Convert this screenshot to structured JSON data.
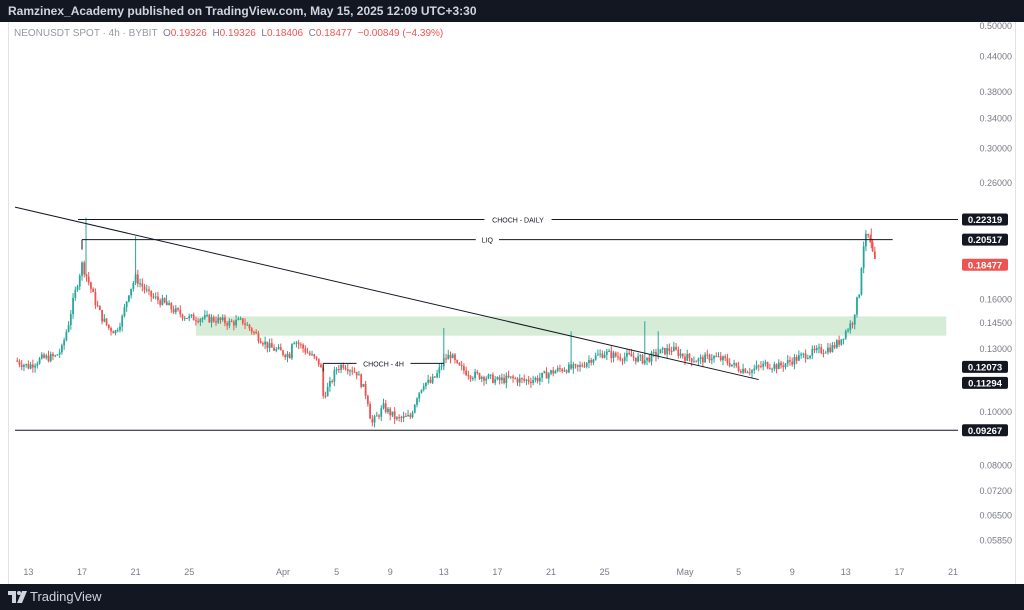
{
  "header": {
    "publisher": "Ramzinex_Academy published on TradingView.com, May 15, 2025 12:09 UTC+3:30"
  },
  "legend": {
    "symbol": "NEONUSDT SPOT · 4h · BYBIT",
    "open_label": "O",
    "open": "0.19326",
    "high_label": "H",
    "high": "0.19326",
    "low_label": "L",
    "low": "0.18406",
    "close_label": "C",
    "close": "0.18477",
    "change": "−0.00849 (−4.39%)"
  },
  "footer": {
    "brand": "TradingView"
  },
  "colors": {
    "up": "#26a69a",
    "down": "#ef5350",
    "zone": "#c8e6c9",
    "line": "#131722",
    "label_bg": "#131722",
    "price_tag": "#ef5350"
  },
  "chart_data": {
    "type": "candlestick",
    "y_scale": "log",
    "ylim": [
      0.0565,
      0.5
    ],
    "y_ticks": [
      "0.50000",
      "0.44000",
      "0.38000",
      "0.34000",
      "0.30000",
      "0.26000",
      "0.16000",
      "0.14500",
      "0.13000",
      "0.10000",
      "0.08000",
      "0.07200",
      "0.06500",
      "0.05850"
    ],
    "y_tick_values": [
      0.5,
      0.44,
      0.38,
      0.34,
      0.3,
      0.26,
      0.16,
      0.145,
      0.13,
      0.1,
      0.08,
      0.072,
      0.065,
      0.0585
    ],
    "x_ticks": [
      "13",
      "17",
      "21",
      "25",
      "Apr",
      "5",
      "9",
      "13",
      "17",
      "21",
      "25",
      "May",
      "5",
      "9",
      "13",
      "17",
      "21"
    ],
    "x_tick_days": [
      -19,
      -15,
      -11,
      -7,
      0,
      4,
      8,
      12,
      16,
      20,
      24,
      30,
      34,
      38,
      42,
      46,
      50
    ],
    "price_tags": [
      {
        "value": "0.22319",
        "level": 0.22319,
        "style": "dark"
      },
      {
        "value": "0.20517",
        "level": 0.20517,
        "style": "dark"
      },
      {
        "value": "0.18477",
        "level": 0.18477,
        "style": "current"
      },
      {
        "value": "0.12073",
        "level": 0.12073,
        "style": "dark"
      },
      {
        "value": "0.11294",
        "level": 0.11294,
        "style": "dark"
      },
      {
        "value": "0.09267",
        "level": 0.09267,
        "style": "dark"
      }
    ],
    "horizontal_lines": [
      {
        "name": "choch-daily",
        "label": "CHOCH - DAILY",
        "level": 0.22319,
        "from_day": -15.3,
        "to_day": 51
      },
      {
        "name": "liq",
        "label": "LIQ",
        "level": 0.20517,
        "from_day": -15,
        "to_day": 45.5
      },
      {
        "name": "choch-4h",
        "label": "CHOCH - 4H",
        "level": 0.1225,
        "from_day": 3,
        "to_day": 12
      },
      {
        "name": "support",
        "label": "",
        "level": 0.09267,
        "from_day": -20,
        "to_day": 51
      }
    ],
    "zone": {
      "low": 0.1375,
      "high": 0.149,
      "from_day": -6.5,
      "to_day": 49.5
    },
    "trendline": {
      "from_day": -20,
      "from_value": 0.235,
      "to_day": 35.5,
      "to_value": 0.1145
    },
    "anchors": [
      [
        -20,
        0.124
      ],
      [
        -19,
        0.121
      ],
      [
        -18,
        0.125
      ],
      [
        -17,
        0.126
      ],
      [
        -16.5,
        0.13
      ],
      [
        -16,
        0.145
      ],
      [
        -15.5,
        0.165
      ],
      [
        -15,
        0.185
      ],
      [
        -14.5,
        0.172
      ],
      [
        -14,
        0.158
      ],
      [
        -13.5,
        0.148
      ],
      [
        -13,
        0.142
      ],
      [
        -12.5,
        0.14
      ],
      [
        -12,
        0.148
      ],
      [
        -11.5,
        0.165
      ],
      [
        -11,
        0.175
      ],
      [
        -10,
        0.163
      ],
      [
        -9,
        0.158
      ],
      [
        -8,
        0.152
      ],
      [
        -7,
        0.148
      ],
      [
        -6,
        0.148
      ],
      [
        -5,
        0.147
      ],
      [
        -4,
        0.145
      ],
      [
        -3,
        0.146
      ],
      [
        -2,
        0.138
      ],
      [
        -1,
        0.131
      ],
      [
        0,
        0.128
      ],
      [
        0.5,
        0.127
      ],
      [
        0.7,
        0.136
      ],
      [
        1,
        0.134
      ],
      [
        2,
        0.127
      ],
      [
        2.8,
        0.122
      ],
      [
        3,
        0.107
      ],
      [
        3.5,
        0.112
      ],
      [
        4,
        0.12
      ],
      [
        4.5,
        0.122
      ],
      [
        5.5,
        0.118
      ],
      [
        6.3,
        0.106
      ],
      [
        6.6,
        0.095
      ],
      [
        7,
        0.098
      ],
      [
        7.5,
        0.102
      ],
      [
        8.5,
        0.097
      ],
      [
        9.5,
        0.098
      ],
      [
        10,
        0.107
      ],
      [
        10.5,
        0.113
      ],
      [
        11,
        0.113
      ],
      [
        11.5,
        0.117
      ],
      [
        12,
        0.124
      ],
      [
        12.5,
        0.127
      ],
      [
        13,
        0.121
      ],
      [
        14,
        0.117
      ],
      [
        15,
        0.116
      ],
      [
        16,
        0.114
      ],
      [
        17,
        0.115
      ],
      [
        18,
        0.114
      ],
      [
        19,
        0.115
      ],
      [
        20,
        0.118
      ],
      [
        21,
        0.12
      ],
      [
        22,
        0.12
      ],
      [
        23,
        0.125
      ],
      [
        24,
        0.128
      ],
      [
        25,
        0.126
      ],
      [
        26,
        0.126
      ],
      [
        27,
        0.124
      ],
      [
        28,
        0.128
      ],
      [
        29,
        0.13
      ],
      [
        30,
        0.126
      ],
      [
        31,
        0.124
      ],
      [
        32,
        0.126
      ],
      [
        33,
        0.124
      ],
      [
        34,
        0.12
      ],
      [
        35,
        0.119
      ],
      [
        36,
        0.122
      ],
      [
        37,
        0.121
      ],
      [
        38,
        0.124
      ],
      [
        39,
        0.127
      ],
      [
        40,
        0.129
      ],
      [
        41,
        0.131
      ],
      [
        41.5,
        0.134
      ],
      [
        42,
        0.14
      ],
      [
        42.5,
        0.146
      ],
      [
        43,
        0.165
      ],
      [
        43.3,
        0.2
      ],
      [
        43.6,
        0.21
      ],
      [
        43.9,
        0.198
      ],
      [
        44.2,
        0.18477
      ]
    ],
    "spikes": [
      [
        -14.7,
        0.225
      ],
      [
        -11,
        0.208
      ],
      [
        -8.7,
        0.163
      ],
      [
        12,
        0.142
      ],
      [
        21.5,
        0.14
      ],
      [
        27,
        0.146
      ],
      [
        28,
        0.14
      ],
      [
        43.9,
        0.215
      ]
    ]
  }
}
